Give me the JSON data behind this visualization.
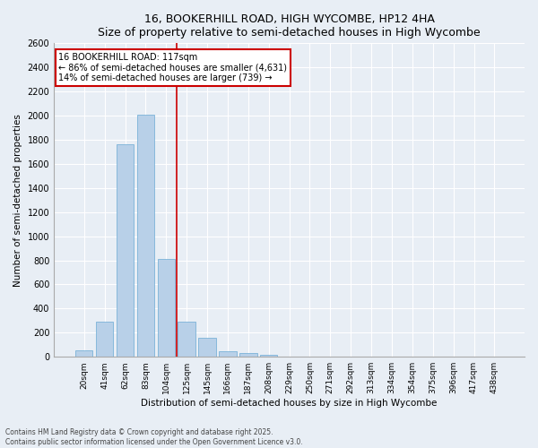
{
  "title": "16, BOOKERHILL ROAD, HIGH WYCOMBE, HP12 4HA",
  "subtitle": "Size of property relative to semi-detached houses in High Wycombe",
  "xlabel": "Distribution of semi-detached houses by size in High Wycombe",
  "ylabel": "Number of semi-detached properties",
  "categories": [
    "20sqm",
    "41sqm",
    "62sqm",
    "83sqm",
    "104sqm",
    "125sqm",
    "145sqm",
    "166sqm",
    "187sqm",
    "208sqm",
    "229sqm",
    "250sqm",
    "271sqm",
    "292sqm",
    "313sqm",
    "334sqm",
    "354sqm",
    "375sqm",
    "396sqm",
    "417sqm",
    "438sqm"
  ],
  "values": [
    55,
    295,
    1760,
    2010,
    815,
    290,
    155,
    45,
    30,
    20,
    0,
    0,
    0,
    0,
    0,
    0,
    0,
    0,
    0,
    0,
    0
  ],
  "bar_color": "#b8d0e8",
  "bar_edge_color": "#6aaad4",
  "vline_color": "#cc0000",
  "annotation_title": "16 BOOKERHILL ROAD: 117sqm",
  "annotation_line1": "← 86% of semi-detached houses are smaller (4,631)",
  "annotation_line2": "14% of semi-detached houses are larger (739) →",
  "annotation_box_color": "#cc0000",
  "ylim": [
    0,
    2600
  ],
  "yticks": [
    0,
    200,
    400,
    600,
    800,
    1000,
    1200,
    1400,
    1600,
    1800,
    2000,
    2200,
    2400,
    2600
  ],
  "bg_color": "#e8eef5",
  "plot_bg_color": "#e8eef5",
  "footer1": "Contains HM Land Registry data © Crown copyright and database right 2025.",
  "footer2": "Contains public sector information licensed under the Open Government Licence v3.0."
}
